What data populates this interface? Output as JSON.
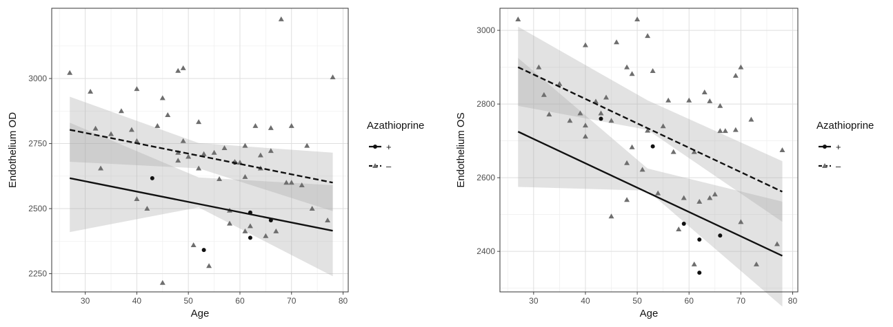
{
  "chart_data": [
    {
      "type": "scatter",
      "xlabel": "Age",
      "ylabel": "Endothelium OD",
      "xlim": [
        23.5,
        81
      ],
      "ylim": [
        2180,
        3270
      ],
      "xticks": [
        30,
        40,
        50,
        60,
        70,
        80
      ],
      "yticks": [
        2250,
        2500,
        2750,
        3000
      ],
      "grid": true,
      "legend": {
        "title": "Azathioprine",
        "position": "right",
        "items": [
          {
            "label": "+",
            "line": "solid",
            "marker": "circle"
          },
          {
            "label": "–",
            "line": "dashed",
            "marker": "triangle"
          }
        ]
      },
      "series": [
        {
          "name": "+",
          "marker": "circle",
          "color": "#111111",
          "points": [
            [
              43,
              2617
            ],
            [
              53,
              2341
            ],
            [
              59,
              2677
            ],
            [
              62,
              2485
            ],
            [
              62,
              2388
            ],
            [
              66,
              2455
            ]
          ],
          "fit": {
            "x": [
              27,
              78
            ],
            "y": [
              2617,
              2415
            ]
          },
          "band": {
            "x": [
              27,
              52,
              78
            ],
            "lower": [
              2410,
              2505,
              2240
            ],
            "upper": [
              2830,
              2620,
              2590
            ]
          }
        },
        {
          "name": "–",
          "marker": "triangle",
          "color": "#6e6e6e",
          "points": [
            [
              27,
              3022
            ],
            [
              31,
              2950
            ],
            [
              32,
              2808
            ],
            [
              33,
              2655
            ],
            [
              35,
              2787
            ],
            [
              37,
              2875
            ],
            [
              39,
              2803
            ],
            [
              40,
              2960
            ],
            [
              40,
              2760
            ],
            [
              40,
              2537
            ],
            [
              42,
              2500
            ],
            [
              44,
              2818
            ],
            [
              45,
              2925
            ],
            [
              45,
              2215
            ],
            [
              46,
              2860
            ],
            [
              48,
              2685
            ],
            [
              48,
              3030
            ],
            [
              48,
              2715
            ],
            [
              49,
              3040
            ],
            [
              49,
              2760
            ],
            [
              50,
              2700
            ],
            [
              51,
              2360
            ],
            [
              52,
              2833
            ],
            [
              52,
              2655
            ],
            [
              53,
              2710
            ],
            [
              54,
              2280
            ],
            [
              55,
              2715
            ],
            [
              56,
              2614
            ],
            [
              57,
              2733
            ],
            [
              58,
              2493
            ],
            [
              58,
              2443
            ],
            [
              59,
              2680
            ],
            [
              60,
              2677
            ],
            [
              61,
              2742
            ],
            [
              61,
              2622
            ],
            [
              61,
              2413
            ],
            [
              62,
              2433
            ],
            [
              63,
              2818
            ],
            [
              64,
              2655
            ],
            [
              64,
              2705
            ],
            [
              65,
              2395
            ],
            [
              66,
              2810
            ],
            [
              66,
              2722
            ],
            [
              67,
              2413
            ],
            [
              68,
              3228
            ],
            [
              69,
              2600
            ],
            [
              70,
              2818
            ],
            [
              70,
              2600
            ],
            [
              72,
              2590
            ],
            [
              73,
              2742
            ],
            [
              74,
              2500
            ],
            [
              77,
              2455
            ],
            [
              78,
              3005
            ]
          ],
          "fit": {
            "x": [
              27,
              78
            ],
            "y": [
              2803,
              2600
            ]
          },
          "band": {
            "x": [
              27,
              52,
              78
            ],
            "lower": [
              2680,
              2655,
              2490
            ],
            "upper": [
              2930,
              2752,
              2715
            ]
          }
        }
      ]
    },
    {
      "type": "scatter",
      "xlabel": "Age",
      "ylabel": "Endothelium OS",
      "xlim": [
        23.5,
        81
      ],
      "ylim": [
        2290,
        3060
      ],
      "xticks": [
        30,
        40,
        50,
        60,
        70,
        80
      ],
      "yticks": [
        2400,
        2600,
        2800,
        3000
      ],
      "grid": true,
      "legend": {
        "title": "Azathioprine",
        "position": "right",
        "items": [
          {
            "label": "+",
            "line": "solid",
            "marker": "circle"
          },
          {
            "label": "–",
            "line": "dashed",
            "marker": "triangle"
          }
        ]
      },
      "series": [
        {
          "name": "+",
          "marker": "circle",
          "color": "#111111",
          "points": [
            [
              43,
              2760
            ],
            [
              53,
              2685
            ],
            [
              59,
              2475
            ],
            [
              62,
              2432
            ],
            [
              62,
              2342
            ],
            [
              66,
              2443
            ]
          ],
          "fit": {
            "x": [
              27,
              78
            ],
            "y": [
              2725,
              2388
            ]
          },
          "band": {
            "x": [
              27,
              52,
              78
            ],
            "lower": [
              2575,
              2565,
              2250
            ],
            "upper": [
              2925,
              2625,
              2535
            ]
          }
        },
        {
          "name": "–",
          "marker": "triangle",
          "color": "#6e6e6e",
          "points": [
            [
              27,
              3030
            ],
            [
              31,
              2900
            ],
            [
              32,
              2825
            ],
            [
              33,
              2772
            ],
            [
              35,
              2855
            ],
            [
              37,
              2755
            ],
            [
              39,
              2775
            ],
            [
              40,
              2960
            ],
            [
              40,
              2742
            ],
            [
              40,
              2712
            ],
            [
              42,
              2807
            ],
            [
              43,
              2775
            ],
            [
              44,
              2818
            ],
            [
              45,
              2755
            ],
            [
              45,
              2495
            ],
            [
              46,
              2968
            ],
            [
              48,
              2900
            ],
            [
              48,
              2640
            ],
            [
              48,
              2540
            ],
            [
              49,
              2882
            ],
            [
              49,
              2683
            ],
            [
              50,
              3030
            ],
            [
              51,
              2622
            ],
            [
              52,
              2985
            ],
            [
              52,
              2728
            ],
            [
              53,
              2890
            ],
            [
              54,
              2558
            ],
            [
              55,
              2740
            ],
            [
              56,
              2810
            ],
            [
              57,
              2670
            ],
            [
              58,
              2460
            ],
            [
              59,
              2545
            ],
            [
              60,
              2810
            ],
            [
              61,
              2670
            ],
            [
              61,
              2365
            ],
            [
              62,
              2535
            ],
            [
              63,
              2832
            ],
            [
              64,
              2545
            ],
            [
              64,
              2808
            ],
            [
              65,
              2555
            ],
            [
              66,
              2795
            ],
            [
              66,
              2727
            ],
            [
              67,
              2727
            ],
            [
              69,
              2730
            ],
            [
              69,
              2877
            ],
            [
              70,
              2900
            ],
            [
              70,
              2480
            ],
            [
              72,
              2758
            ],
            [
              73,
              2365
            ],
            [
              77,
              2420
            ],
            [
              78,
              2675
            ]
          ],
          "fit": {
            "x": [
              27,
              78
            ],
            "y": [
              2900,
              2562
            ]
          },
          "band": {
            "x": [
              27,
              52,
              78
            ],
            "lower": [
              2795,
              2730,
              2480
            ],
            "upper": [
              3010,
              2810,
              2645
            ]
          }
        }
      ]
    }
  ]
}
